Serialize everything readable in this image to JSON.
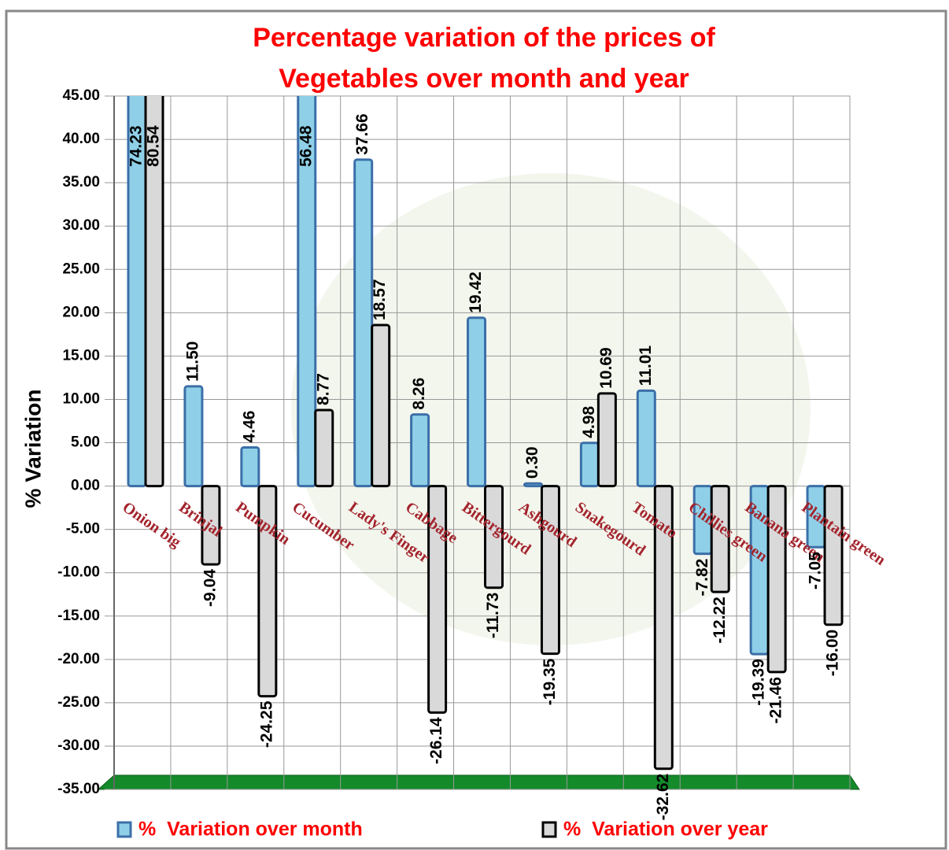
{
  "chart_data": {
    "type": "bar",
    "title": [
      "Percentage variation of the prices of",
      "Vegetables over month and year"
    ],
    "y_label": "% Variation",
    "categories": [
      "Onion big",
      "Brinjal",
      "Pumpkin",
      "Cucumber",
      "Lady's Finger",
      "Cabbage",
      "Bittergourd",
      "Ashgourd",
      "Snakegourd",
      "Tomato",
      "Chillies green",
      "Banana green",
      "Plantain green"
    ],
    "series": [
      {
        "name": "%  Variation over month",
        "color": "#8fd0e8",
        "stroke": "#3b6fa8",
        "values": [
          74.23,
          11.5,
          4.46,
          56.48,
          37.66,
          8.26,
          19.42,
          0.3,
          4.98,
          11.01,
          -7.82,
          -19.39,
          -7.05
        ],
        "value_labels": [
          "74.23",
          "11.50",
          "4.46",
          "56.48",
          "37.66",
          "8.26",
          "19.42",
          "0.30",
          "4.98",
          "11.01",
          "-7.82",
          "-19.39",
          "-7.05"
        ]
      },
      {
        "name": "%  Variation over year",
        "color": "#d9d9d9",
        "stroke": "#000000",
        "values": [
          80.54,
          -9.04,
          -24.25,
          8.77,
          18.57,
          -26.14,
          -11.73,
          -19.35,
          10.69,
          -32.62,
          -12.22,
          -21.46,
          -16.0
        ],
        "value_labels": [
          "80.54",
          "-9.04",
          "-24.25",
          "8.77",
          "18.57",
          "-26.14",
          "-11.73",
          "-19.35",
          "10.69",
          "-32.62",
          "-12.22",
          "-21.46",
          "-16.00"
        ]
      }
    ],
    "ylim": [
      -35,
      45
    ],
    "yticks": [
      {
        "value": 45,
        "label": "45.00"
      },
      {
        "value": 40,
        "label": "40.00"
      },
      {
        "value": 35,
        "label": "35.00"
      },
      {
        "value": 30,
        "label": "30.00"
      },
      {
        "value": 25,
        "label": "25.00"
      },
      {
        "value": 20,
        "label": "20.00"
      },
      {
        "value": 15,
        "label": "15.00"
      },
      {
        "value": 10,
        "label": "10.00"
      },
      {
        "value": 5,
        "label": "5.00"
      },
      {
        "value": 0,
        "label": "0.00"
      },
      {
        "value": -5,
        "label": "-5.00"
      },
      {
        "value": -10,
        "label": "-10.00"
      },
      {
        "value": -15,
        "label": "-15.00"
      },
      {
        "value": -20,
        "label": "-20.00"
      },
      {
        "value": -25,
        "label": "-25.00"
      },
      {
        "value": -30,
        "label": "-30.00"
      },
      {
        "value": -35,
        "label": "-35.00"
      }
    ],
    "grid": true
  }
}
